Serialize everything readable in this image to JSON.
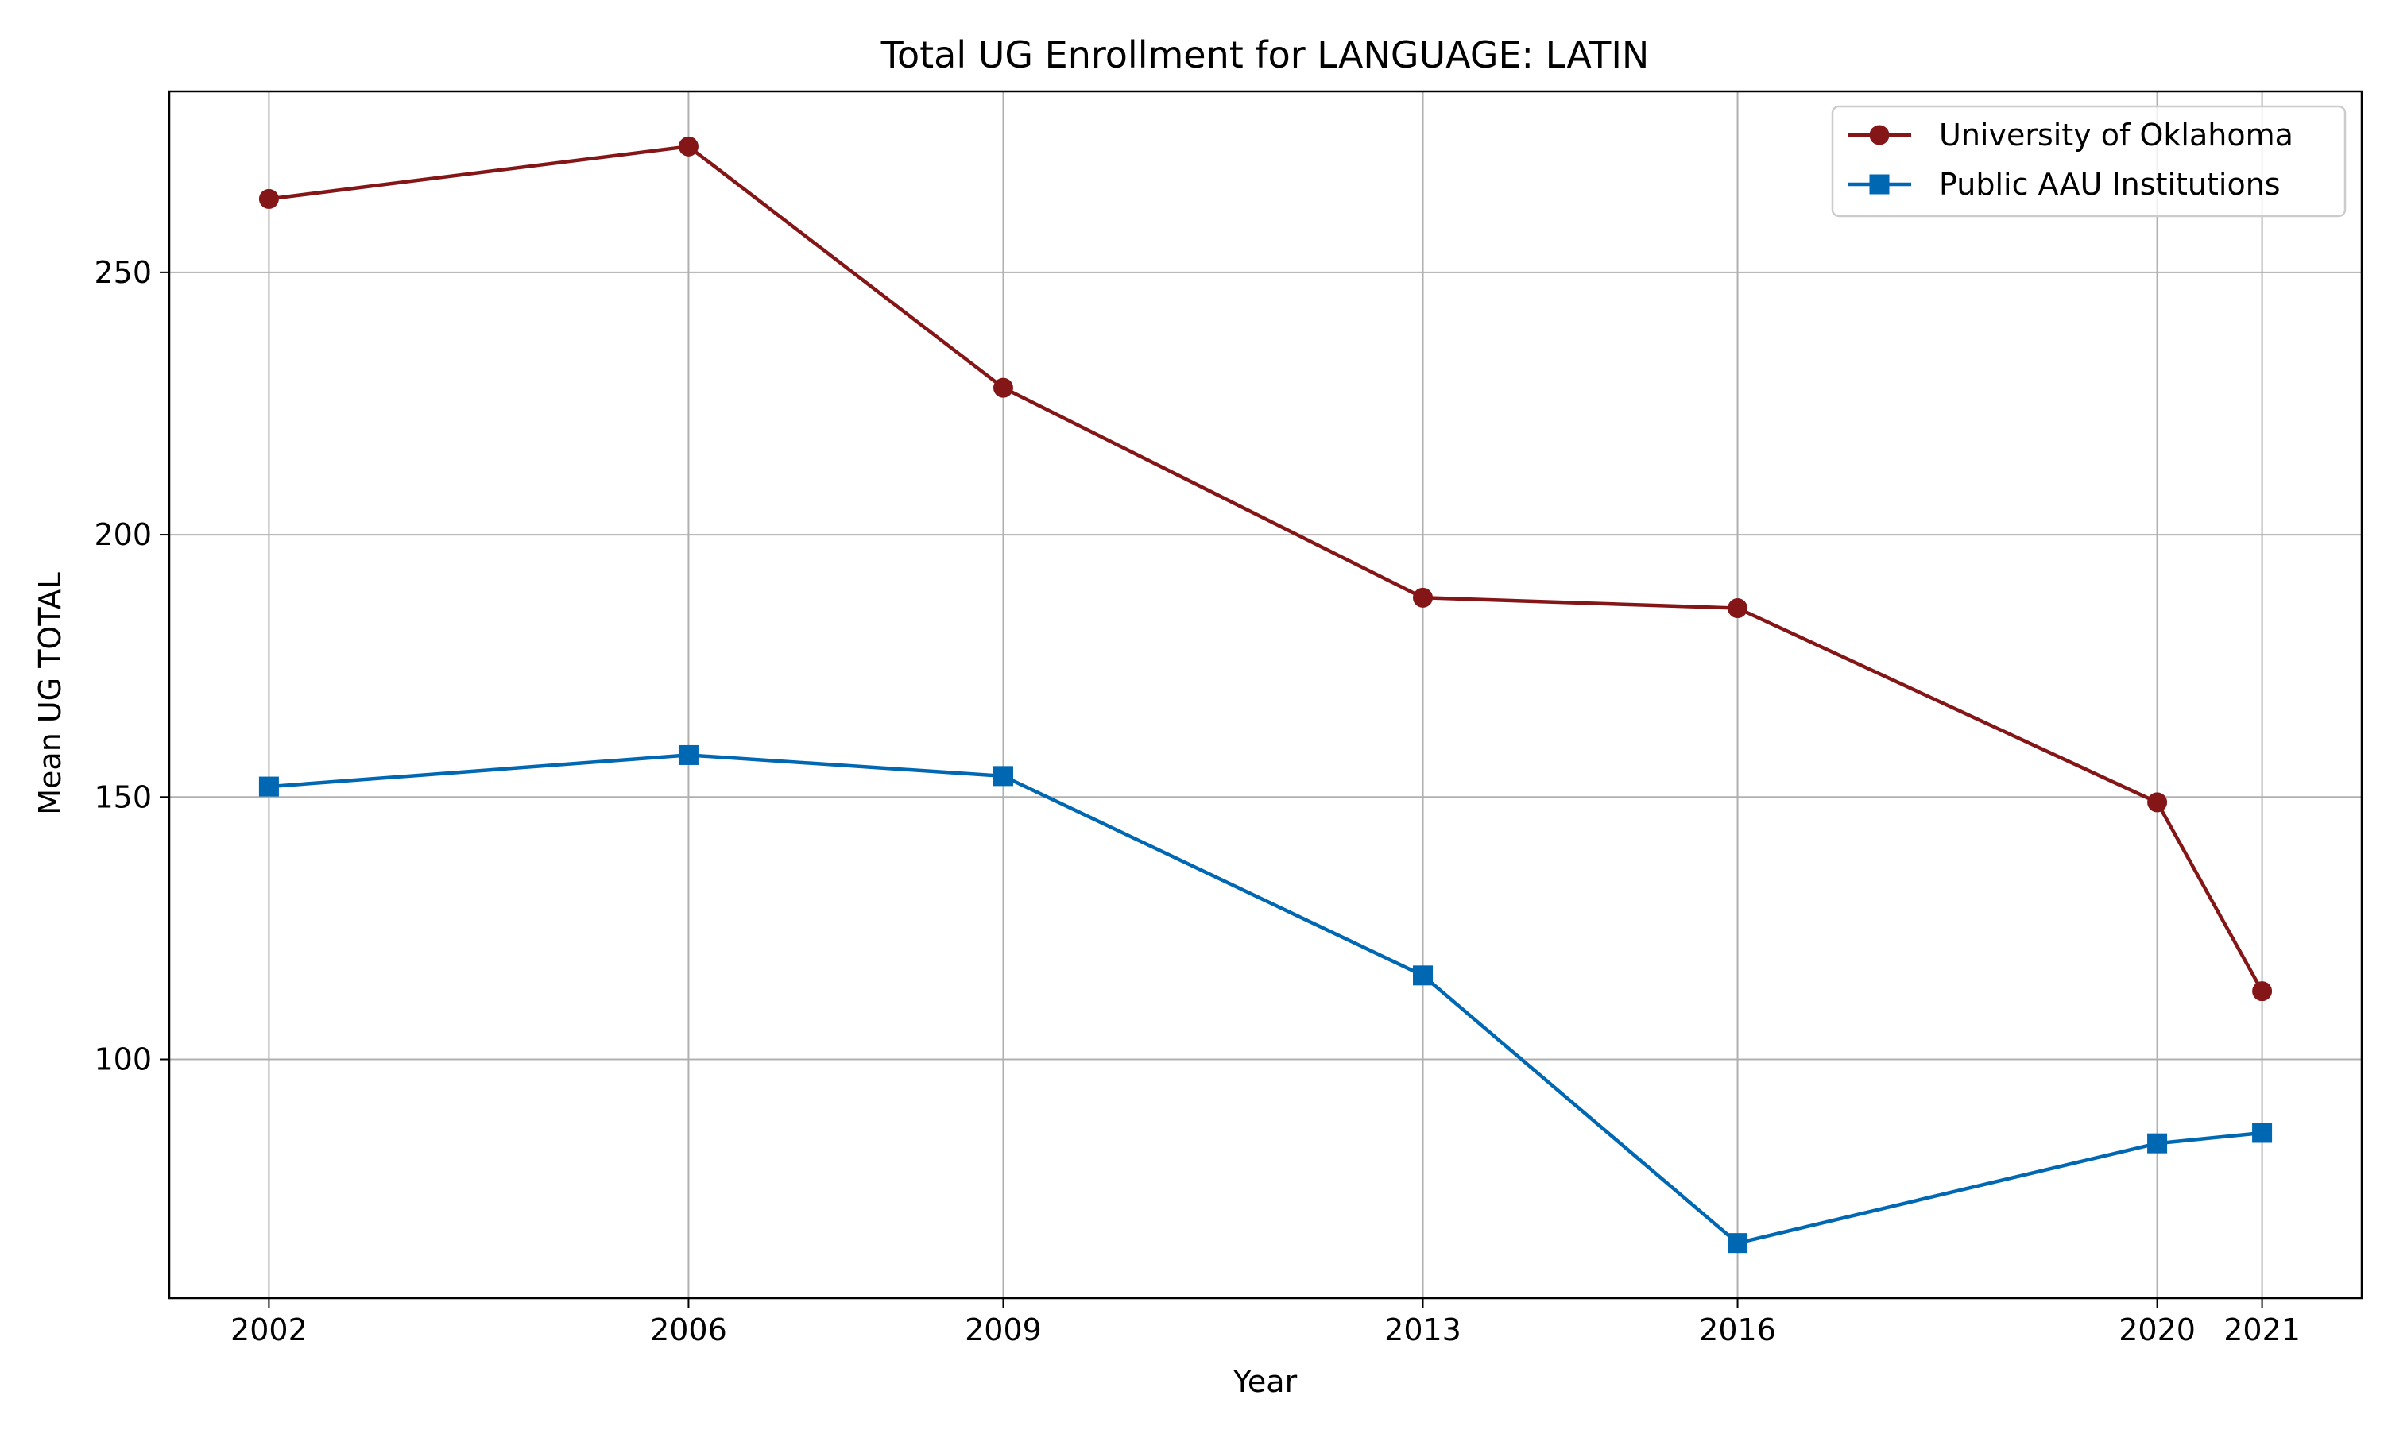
{
  "chart_data": {
    "type": "line",
    "title": "Total UG Enrollment for LANGUAGE: LATIN",
    "xlabel": "Year",
    "ylabel": "Mean UG TOTAL",
    "x": [
      2002,
      2006,
      2009,
      2013,
      2016,
      2020,
      2021
    ],
    "x_ticks": [
      "2002",
      "2006",
      "2009",
      "2013",
      "2016",
      "2020",
      "2021"
    ],
    "y_ticks": [
      "100",
      "150",
      "200",
      "250"
    ],
    "xlim": [
      2001.05,
      2021.95
    ],
    "ylim": [
      54.5,
      284.5
    ],
    "grid": true,
    "legend_position": "top-right",
    "series": [
      {
        "name": "University of Oklahoma",
        "color": "#841617",
        "marker": "circle",
        "values": [
          264,
          274,
          228,
          188,
          186,
          149,
          113
        ]
      },
      {
        "name": "Public AAU Institutions",
        "color": "#0067b2",
        "marker": "square",
        "values": [
          152,
          158,
          154,
          116,
          65,
          84,
          86
        ]
      }
    ]
  }
}
